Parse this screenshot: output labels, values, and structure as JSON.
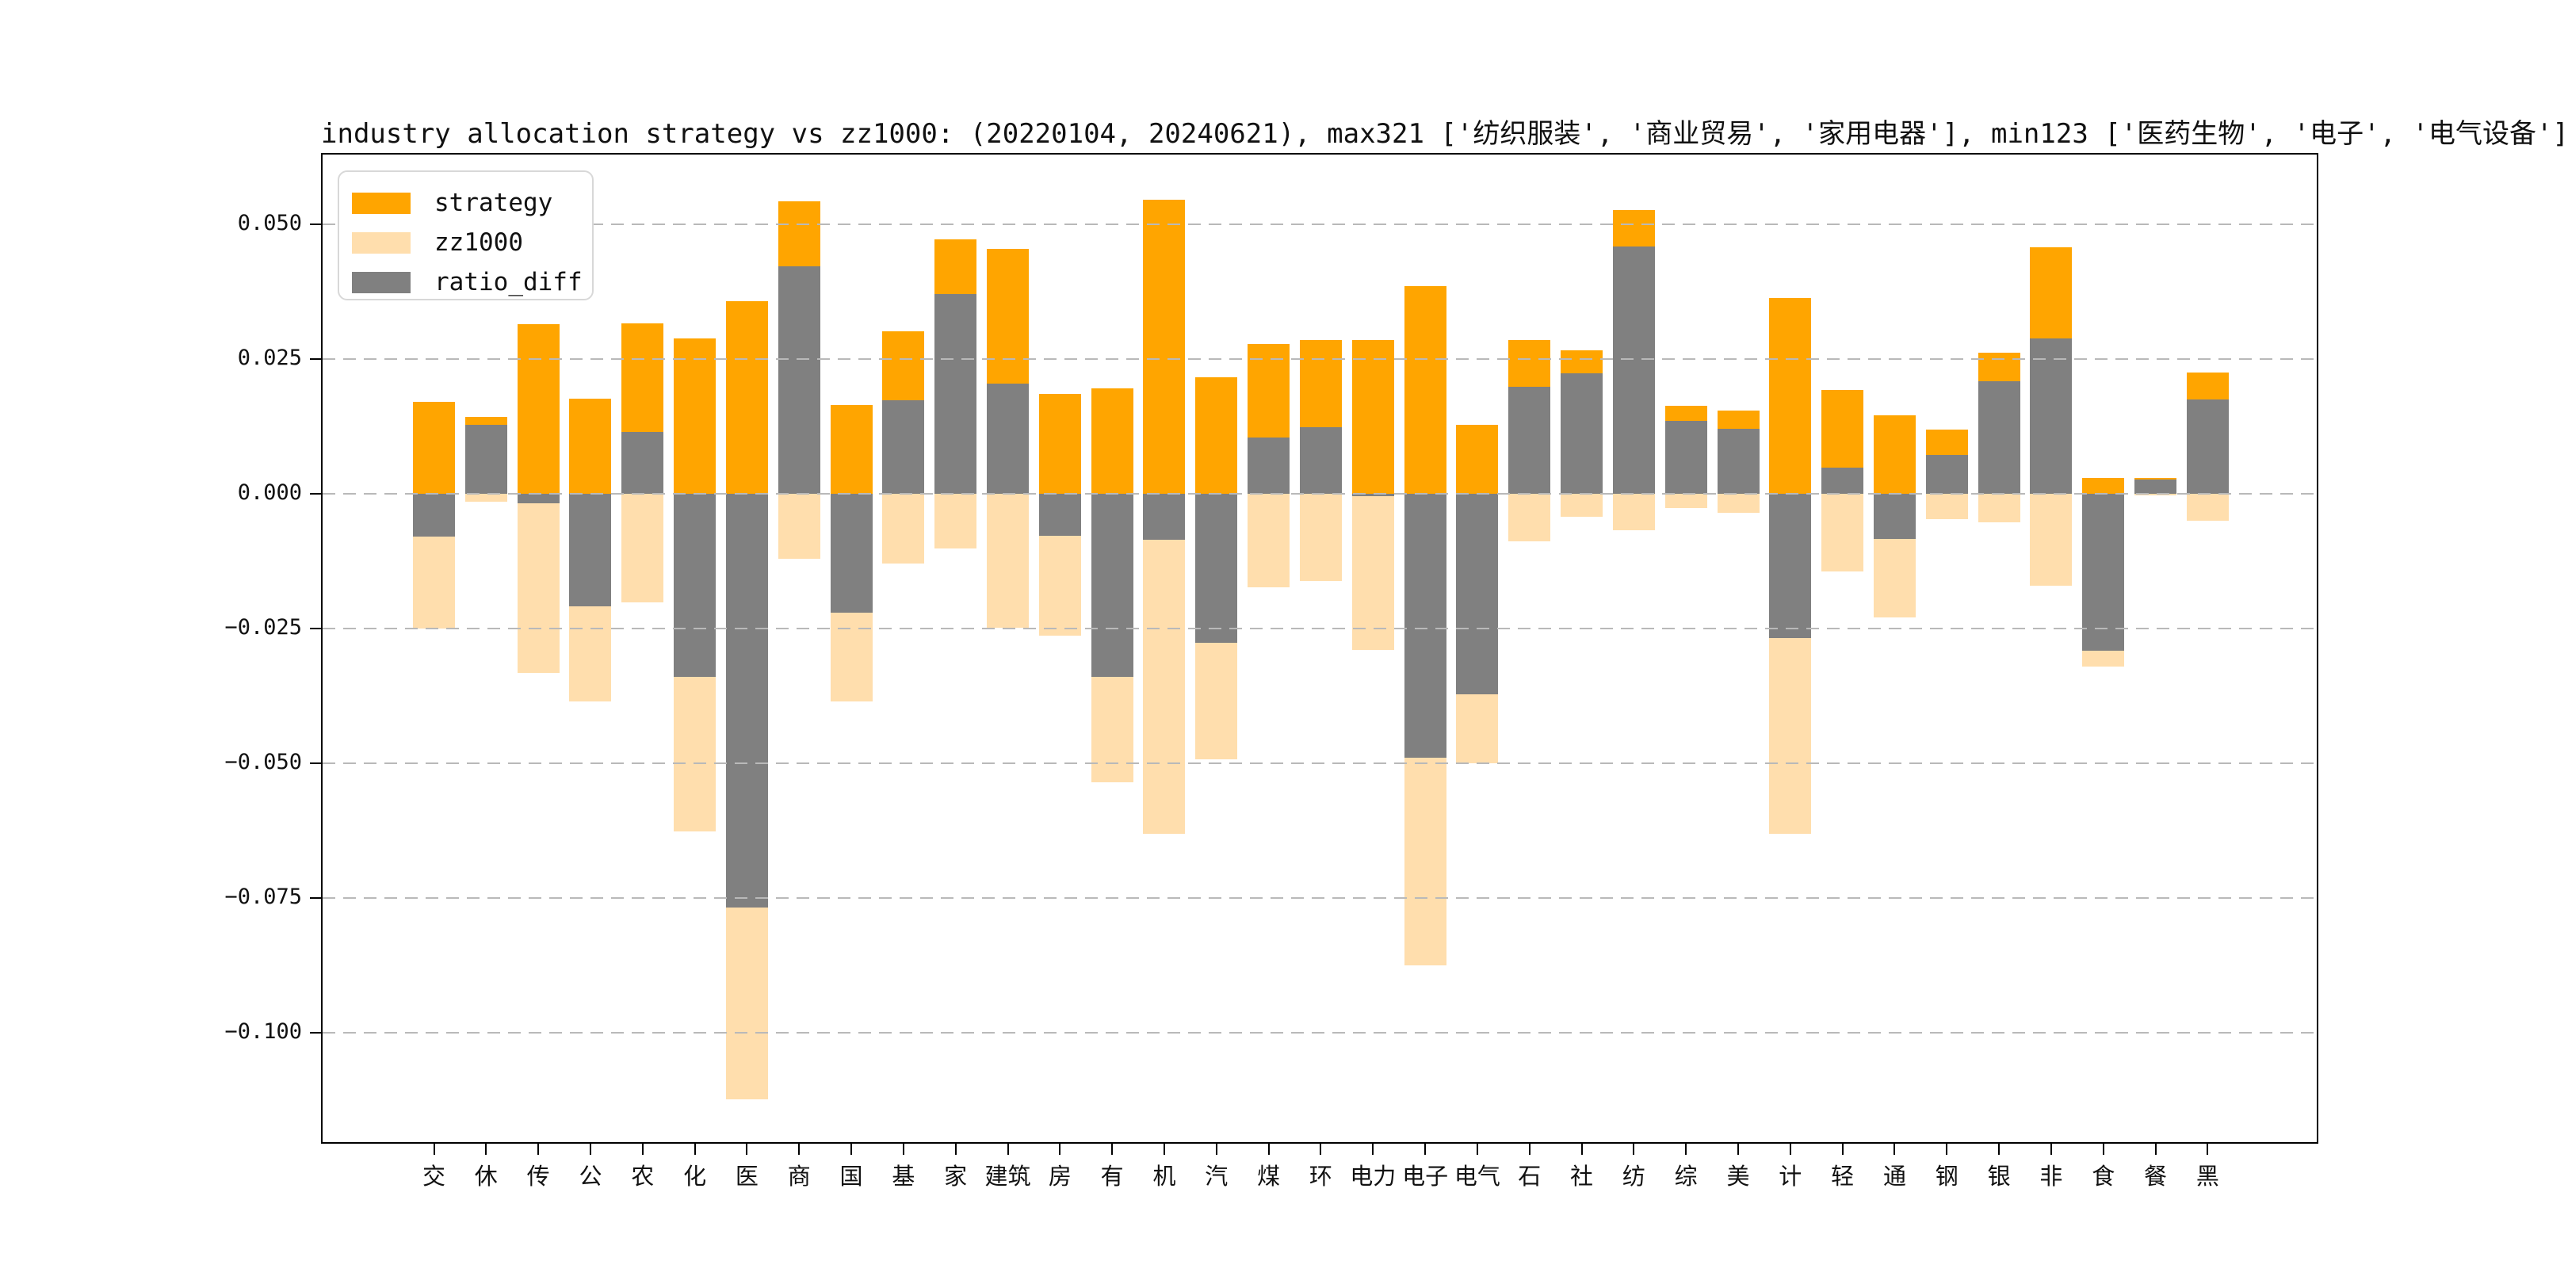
{
  "figure": {
    "title": "industry allocation strategy vs zz1000: (20220104, 20240621), max321 ['纺织服装', '商业贸易', '家用电器'], min123 ['医药生物', '电子', '电气设备']",
    "background": "#ffffff"
  },
  "legend": {
    "position": "upper left",
    "items": [
      {
        "label": "strategy",
        "color": "#FFA500"
      },
      {
        "label": "zz1000",
        "color": "#FFDEAD"
      },
      {
        "label": "ratio_diff",
        "color": "#808080"
      }
    ]
  },
  "axes": {
    "y_tick_labels": [
      "0.050",
      "0.025",
      "0.000",
      "−0.025",
      "−0.050",
      "−0.075",
      "−0.100"
    ],
    "y_tick_values": [
      0.05,
      0.025,
      0.0,
      -0.025,
      -0.05,
      -0.075,
      -0.1
    ],
    "grid_color": "#b9b9b9",
    "spine_color": "#000000"
  },
  "chart_data": {
    "type": "bar",
    "title": "industry allocation strategy vs zz1000: (20220104, 20240621), max321 ['纺织服装', '商业贸易', '家用电器'], min123 ['医药生物', '电子', '电气设备']",
    "date_range": [
      "20220104",
      "20240621"
    ],
    "max321": [
      "纺织服装",
      "商业贸易",
      "家用电器"
    ],
    "min123": [
      "医药生物",
      "电子",
      "电气设备"
    ],
    "categories": [
      "交",
      "休",
      "传",
      "公",
      "农",
      "化",
      "医",
      "商",
      "国",
      "基",
      "家",
      "建筑",
      "房",
      "有",
      "机",
      "汽",
      "煤",
      "环",
      "电力",
      "电子",
      "电气",
      "石",
      "社",
      "纺",
      "综",
      "美",
      "计",
      "轻",
      "通",
      "钢",
      "银",
      "非",
      "食",
      "餐",
      "黑"
    ],
    "series": [
      {
        "name": "strategy",
        "color": "#FFA500",
        "plotted_as": "positive bars up from zero",
        "values": [
          0.017,
          0.0143,
          0.0315,
          0.0177,
          0.0316,
          0.0288,
          0.0357,
          0.0542,
          0.0164,
          0.0302,
          0.0472,
          0.0454,
          0.0185,
          0.0195,
          0.0545,
          0.0216,
          0.0278,
          0.0286,
          0.0285,
          0.0386,
          0.0128,
          0.0286,
          0.0266,
          0.0527,
          0.0163,
          0.0155,
          0.0363,
          0.0192,
          0.0145,
          0.0119,
          0.0262,
          0.0458,
          0.0029,
          0.003,
          0.0225
        ]
      },
      {
        "name": "zz1000",
        "color": "#FFDEAD",
        "plotted_as": "positive weights drawn downward as negative bars",
        "values": [
          0.025,
          0.0015,
          0.0332,
          0.0386,
          0.0201,
          0.0627,
          0.1124,
          0.012,
          0.0385,
          0.0129,
          0.0102,
          0.0249,
          0.0263,
          0.0535,
          0.0631,
          0.0493,
          0.0174,
          0.0162,
          0.029,
          0.0875,
          0.05,
          0.0088,
          0.0042,
          0.0068,
          0.0027,
          0.0035,
          0.0631,
          0.0144,
          0.0229,
          0.0047,
          0.0053,
          0.017,
          0.032,
          0.0003,
          0.005
        ]
      },
      {
        "name": "ratio_diff",
        "color": "#808080",
        "plotted_as": "strategy minus zz1000, overlaid from zero on top",
        "values": [
          -0.008,
          0.0128,
          -0.0017,
          -0.0209,
          0.0115,
          -0.0339,
          -0.0767,
          0.0422,
          -0.0221,
          0.0173,
          0.037,
          0.0205,
          -0.0078,
          -0.034,
          -0.0086,
          -0.0277,
          0.0104,
          0.0124,
          -0.0005,
          -0.0489,
          -0.0372,
          0.0198,
          0.0224,
          0.0459,
          0.0136,
          0.012,
          -0.0268,
          0.0048,
          -0.0084,
          0.0072,
          0.0209,
          0.0288,
          -0.0291,
          0.0027,
          0.0175
        ]
      }
    ],
    "ylim": [
      -0.1209,
      0.0629
    ],
    "grid": true,
    "grid_style": "dashed horizontal",
    "legend_position": "upper left"
  }
}
